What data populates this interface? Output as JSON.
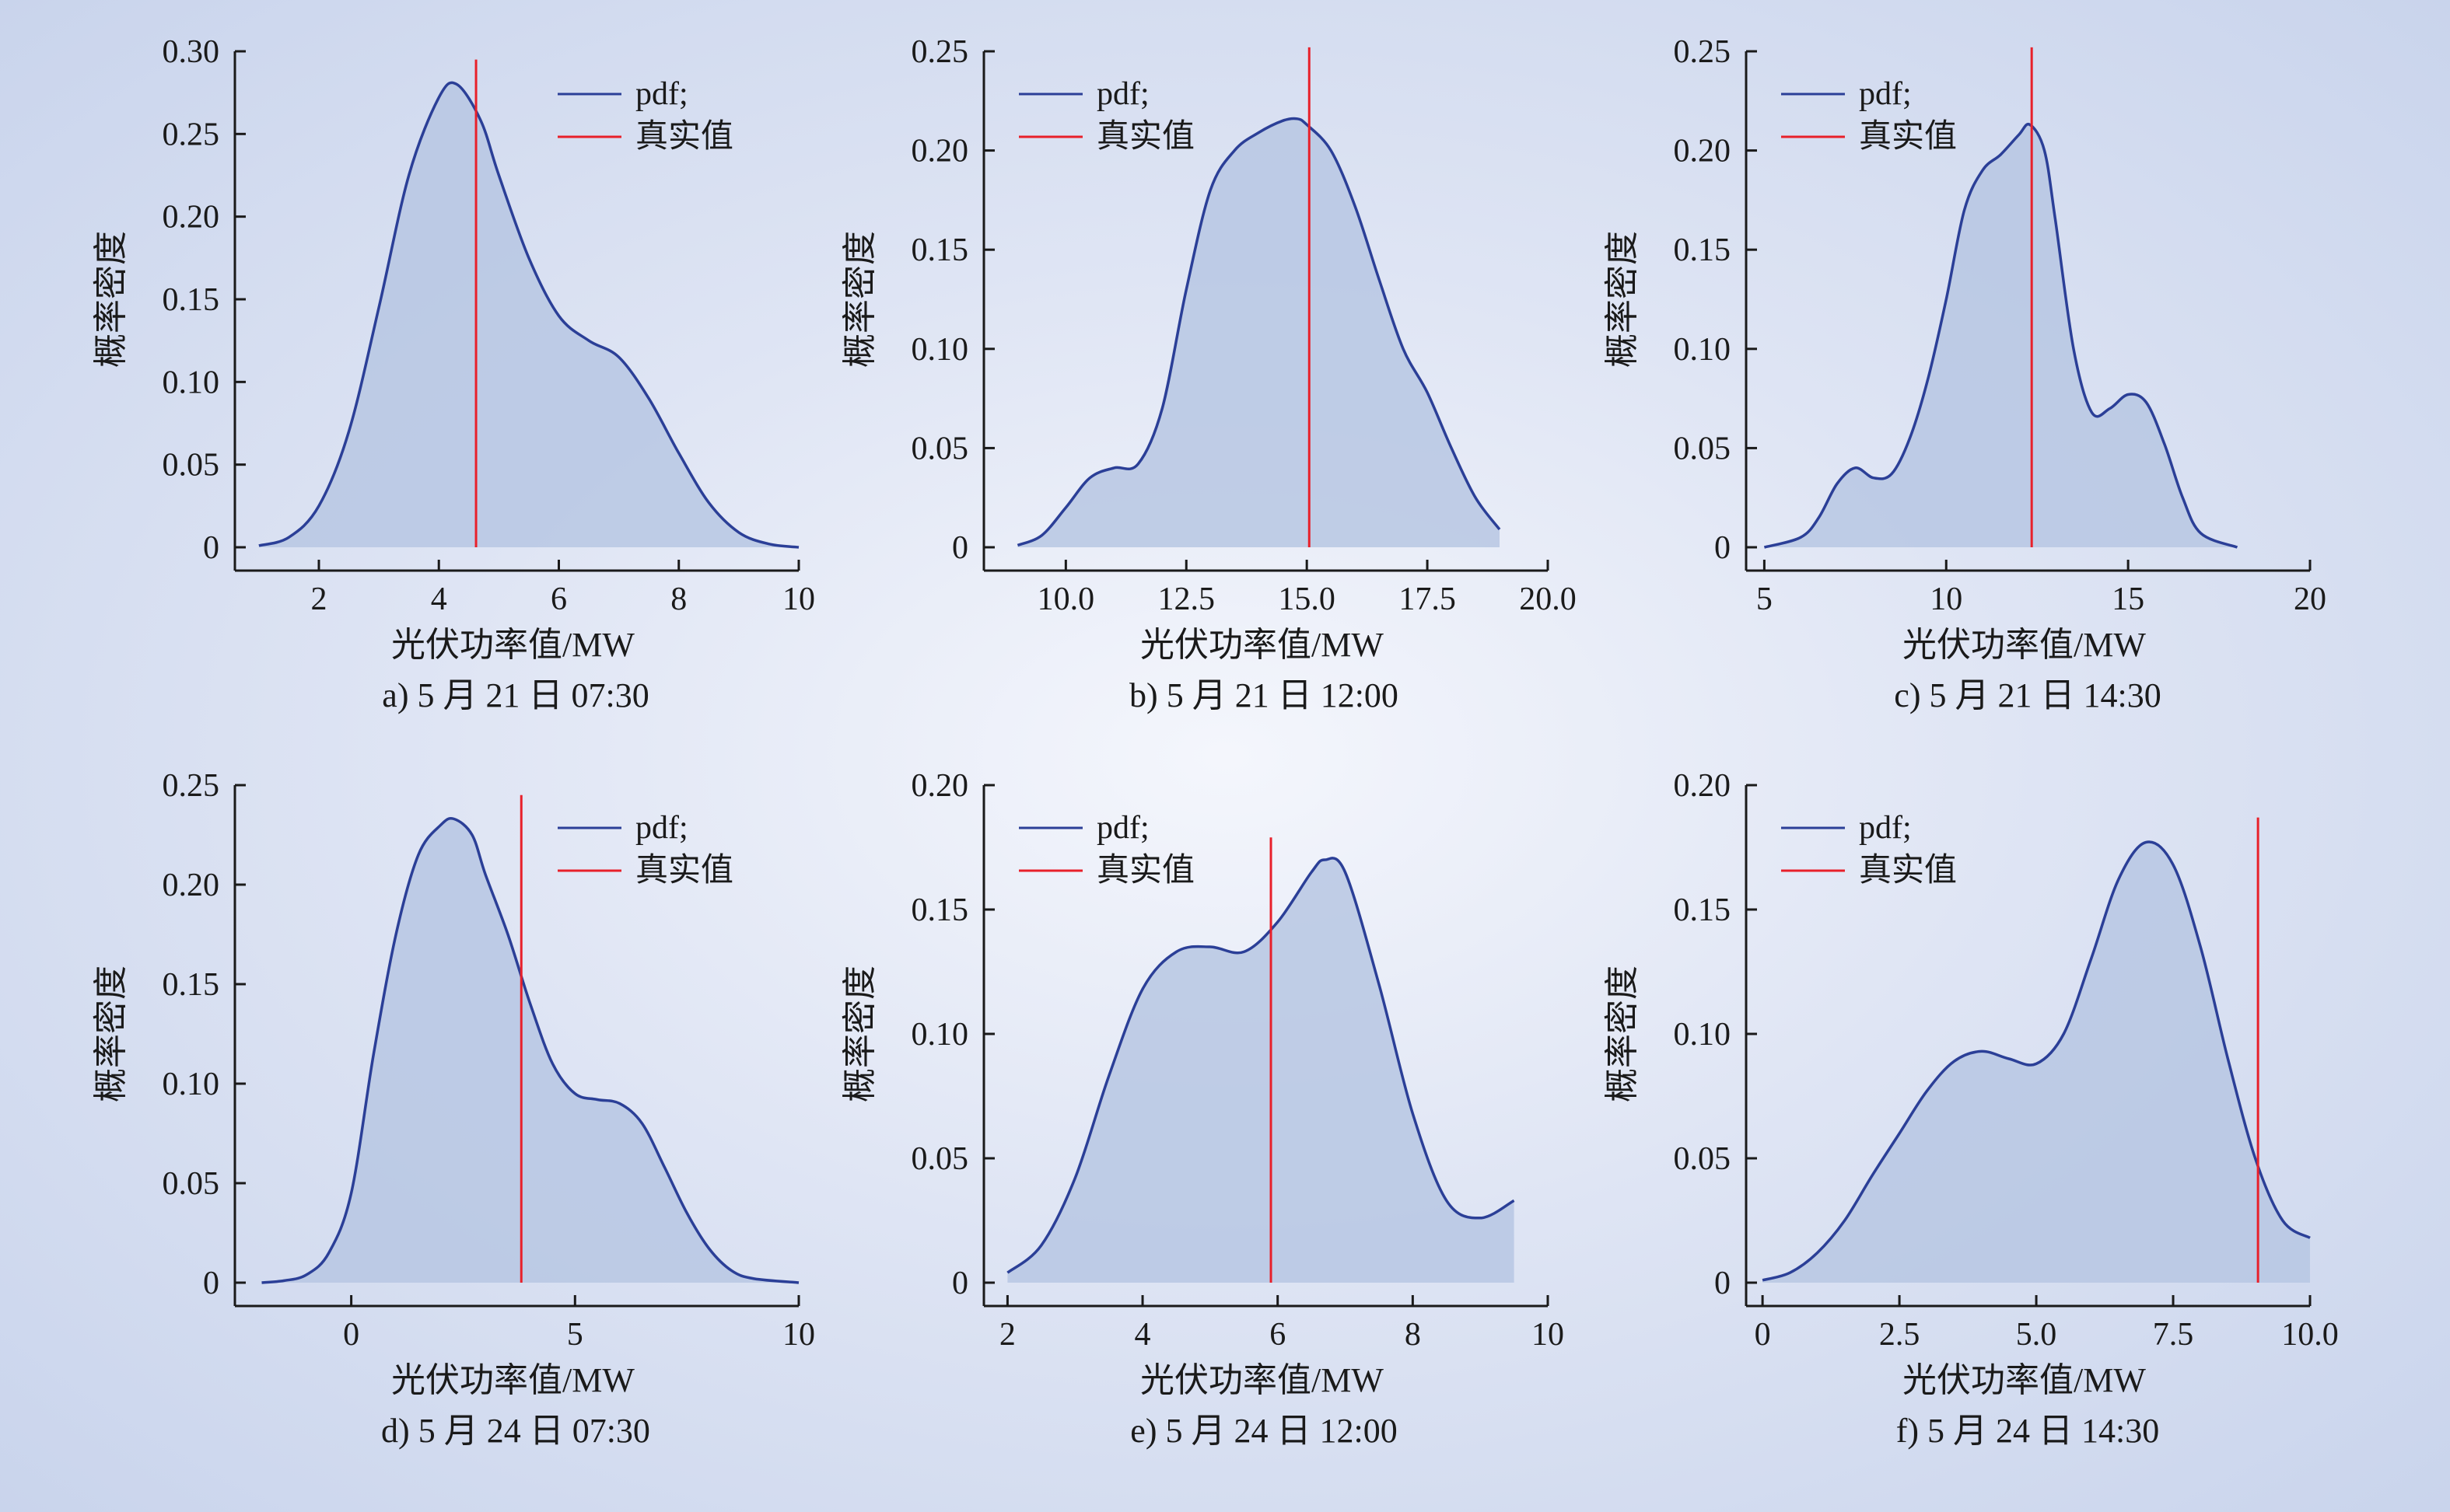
{
  "figure": {
    "legend_pdf": "pdf;",
    "legend_true": "真实值",
    "ylabel": "概率密度",
    "xlabel": "光伏功率值/MW",
    "colors": {
      "pdf_line": "#2b3f97",
      "pdf_fill": "#b7c7e3",
      "true_line": "#e8202a",
      "axis": "#1a1a1a"
    }
  },
  "chart_data": [
    {
      "type": "area",
      "caption": "a) 5 月 21 日 07:30",
      "xlim": [
        0.6,
        10
      ],
      "ylim": [
        0,
        0.3
      ],
      "xticks": [
        2,
        4,
        6,
        8,
        10
      ],
      "xtick_labels": [
        "2",
        "4",
        "6",
        "8",
        "10"
      ],
      "yticks": [
        0,
        0.05,
        0.1,
        0.15,
        0.2,
        0.25,
        0.3
      ],
      "ytick_labels": [
        "0",
        "0.05",
        "0.10",
        "0.15",
        "0.20",
        "0.25",
        "0.30"
      ],
      "true_value": 4.62,
      "true_line_top": 0.295,
      "series": [
        {
          "x": [
            1.0,
            1.5,
            2.0,
            2.5,
            3.0,
            3.5,
            4.0,
            4.3,
            4.7,
            5.0,
            5.5,
            6.0,
            6.5,
            7.0,
            7.5,
            8.0,
            8.5,
            9.0,
            9.5,
            10.0
          ],
          "y": [
            0.001,
            0.006,
            0.025,
            0.07,
            0.145,
            0.225,
            0.272,
            0.28,
            0.258,
            0.225,
            0.175,
            0.14,
            0.125,
            0.115,
            0.09,
            0.057,
            0.027,
            0.009,
            0.002,
            0.0
          ]
        }
      ]
    },
    {
      "type": "area",
      "caption": "b) 5 月 21 日 12:00",
      "xlim": [
        8.3,
        20.0
      ],
      "ylim": [
        0,
        0.25
      ],
      "xticks": [
        10.0,
        12.5,
        15.0,
        17.5,
        20.0
      ],
      "xtick_labels": [
        "10.0",
        "12.5",
        "15.0",
        "17.5",
        "20.0"
      ],
      "yticks": [
        0,
        0.05,
        0.1,
        0.15,
        0.2,
        0.25
      ],
      "ytick_labels": [
        "0",
        "0.05",
        "0.10",
        "0.15",
        "0.20",
        "0.25"
      ],
      "true_value": 15.05,
      "true_line_top": 0.252,
      "series": [
        {
          "x": [
            9.0,
            9.5,
            10.0,
            10.5,
            11.0,
            11.5,
            12.0,
            12.5,
            13.0,
            13.5,
            14.0,
            14.5,
            14.8,
            15.0,
            15.5,
            16.0,
            16.5,
            17.0,
            17.5,
            18.0,
            18.5,
            19.0
          ],
          "y": [
            0.001,
            0.006,
            0.02,
            0.035,
            0.04,
            0.042,
            0.07,
            0.13,
            0.18,
            0.2,
            0.209,
            0.215,
            0.216,
            0.213,
            0.2,
            0.172,
            0.135,
            0.1,
            0.078,
            0.05,
            0.025,
            0.009
          ]
        }
      ]
    },
    {
      "type": "area",
      "caption": "c) 5 月 21 日 14:30",
      "xlim": [
        4.5,
        20
      ],
      "ylim": [
        0,
        0.25
      ],
      "xticks": [
        5,
        10,
        15,
        20
      ],
      "xtick_labels": [
        "5",
        "10",
        "15",
        "20"
      ],
      "yticks": [
        0,
        0.05,
        0.1,
        0.15,
        0.2,
        0.25
      ],
      "ytick_labels": [
        "0",
        "0.05",
        "0.10",
        "0.15",
        "0.20",
        "0.25"
      ],
      "true_value": 12.35,
      "true_line_top": 0.252,
      "series": [
        {
          "x": [
            5.0,
            6.0,
            6.5,
            7.0,
            7.5,
            8.0,
            8.5,
            9.0,
            9.5,
            10.0,
            10.5,
            11.0,
            11.5,
            12.0,
            12.3,
            12.7,
            13.0,
            13.5,
            14.0,
            14.5,
            15.0,
            15.5,
            16.0,
            16.5,
            17.0,
            18.0
          ],
          "y": [
            0.0,
            0.005,
            0.015,
            0.032,
            0.04,
            0.035,
            0.037,
            0.055,
            0.085,
            0.125,
            0.17,
            0.19,
            0.198,
            0.208,
            0.213,
            0.2,
            0.165,
            0.1,
            0.068,
            0.07,
            0.077,
            0.073,
            0.052,
            0.025,
            0.007,
            0.0
          ]
        }
      ]
    },
    {
      "type": "area",
      "caption": "d) 5 月 24 日 07:30",
      "xlim": [
        -2.6,
        10
      ],
      "ylim": [
        0,
        0.25
      ],
      "xticks": [
        0,
        5,
        10
      ],
      "xtick_labels": [
        "0",
        "5",
        "10"
      ],
      "yticks": [
        0,
        0.05,
        0.1,
        0.15,
        0.2,
        0.25
      ],
      "ytick_labels": [
        "0",
        "0.05",
        "0.10",
        "0.15",
        "0.20",
        "0.25"
      ],
      "true_value": 3.8,
      "true_line_top": 0.245,
      "series": [
        {
          "x": [
            -2.0,
            -1.5,
            -1.0,
            -0.5,
            0.0,
            0.5,
            1.0,
            1.5,
            2.0,
            2.3,
            2.7,
            3.0,
            3.5,
            4.0,
            4.5,
            5.0,
            5.5,
            6.0,
            6.5,
            7.0,
            7.5,
            8.0,
            8.5,
            9.0,
            10.0
          ],
          "y": [
            0.0,
            0.001,
            0.004,
            0.015,
            0.045,
            0.115,
            0.175,
            0.215,
            0.23,
            0.233,
            0.225,
            0.205,
            0.175,
            0.14,
            0.11,
            0.095,
            0.092,
            0.09,
            0.08,
            0.058,
            0.035,
            0.017,
            0.006,
            0.002,
            0.0
          ]
        }
      ]
    },
    {
      "type": "area",
      "caption": "e) 5 月 24 日 12:00",
      "xlim": [
        1.65,
        10
      ],
      "ylim": [
        0,
        0.2
      ],
      "xticks": [
        2,
        4,
        6,
        8,
        10
      ],
      "xtick_labels": [
        "2",
        "4",
        "6",
        "8",
        "10"
      ],
      "yticks": [
        0,
        0.05,
        0.1,
        0.15,
        0.2
      ],
      "ytick_labels": [
        "0",
        "0.05",
        "0.10",
        "0.15",
        "0.20"
      ],
      "true_value": 5.9,
      "true_line_top": 0.179,
      "series": [
        {
          "x": [
            2.0,
            2.5,
            3.0,
            3.5,
            4.0,
            4.5,
            5.0,
            5.5,
            6.0,
            6.5,
            6.7,
            7.0,
            7.5,
            8.0,
            8.5,
            9.0,
            9.5
          ],
          "y": [
            0.004,
            0.015,
            0.042,
            0.083,
            0.118,
            0.133,
            0.135,
            0.133,
            0.145,
            0.165,
            0.17,
            0.165,
            0.12,
            0.068,
            0.033,
            0.026,
            0.033
          ]
        }
      ]
    },
    {
      "type": "area",
      "caption": "f) 5 月 24 日 14:30",
      "xlim": [
        -0.3,
        10.0
      ],
      "ylim": [
        0,
        0.2
      ],
      "xticks": [
        0,
        2.5,
        5.0,
        7.5,
        10.0
      ],
      "xtick_labels": [
        "0",
        "2.5",
        "5.0",
        "7.5",
        "10.0"
      ],
      "yticks": [
        0,
        0.05,
        0.1,
        0.15,
        0.2
      ],
      "ytick_labels": [
        "0",
        "0.05",
        "0.10",
        "0.15",
        "0.20"
      ],
      "true_value": 9.05,
      "true_line_top": 0.187,
      "series": [
        {
          "x": [
            0.0,
            0.5,
            1.0,
            1.5,
            2.0,
            2.5,
            3.0,
            3.5,
            4.0,
            4.5,
            5.0,
            5.5,
            6.0,
            6.5,
            7.0,
            7.5,
            8.0,
            8.5,
            9.0,
            9.5,
            10.0
          ],
          "y": [
            0.001,
            0.004,
            0.012,
            0.025,
            0.043,
            0.06,
            0.077,
            0.089,
            0.093,
            0.09,
            0.088,
            0.1,
            0.13,
            0.162,
            0.177,
            0.168,
            0.135,
            0.09,
            0.05,
            0.025,
            0.018
          ]
        }
      ]
    }
  ]
}
